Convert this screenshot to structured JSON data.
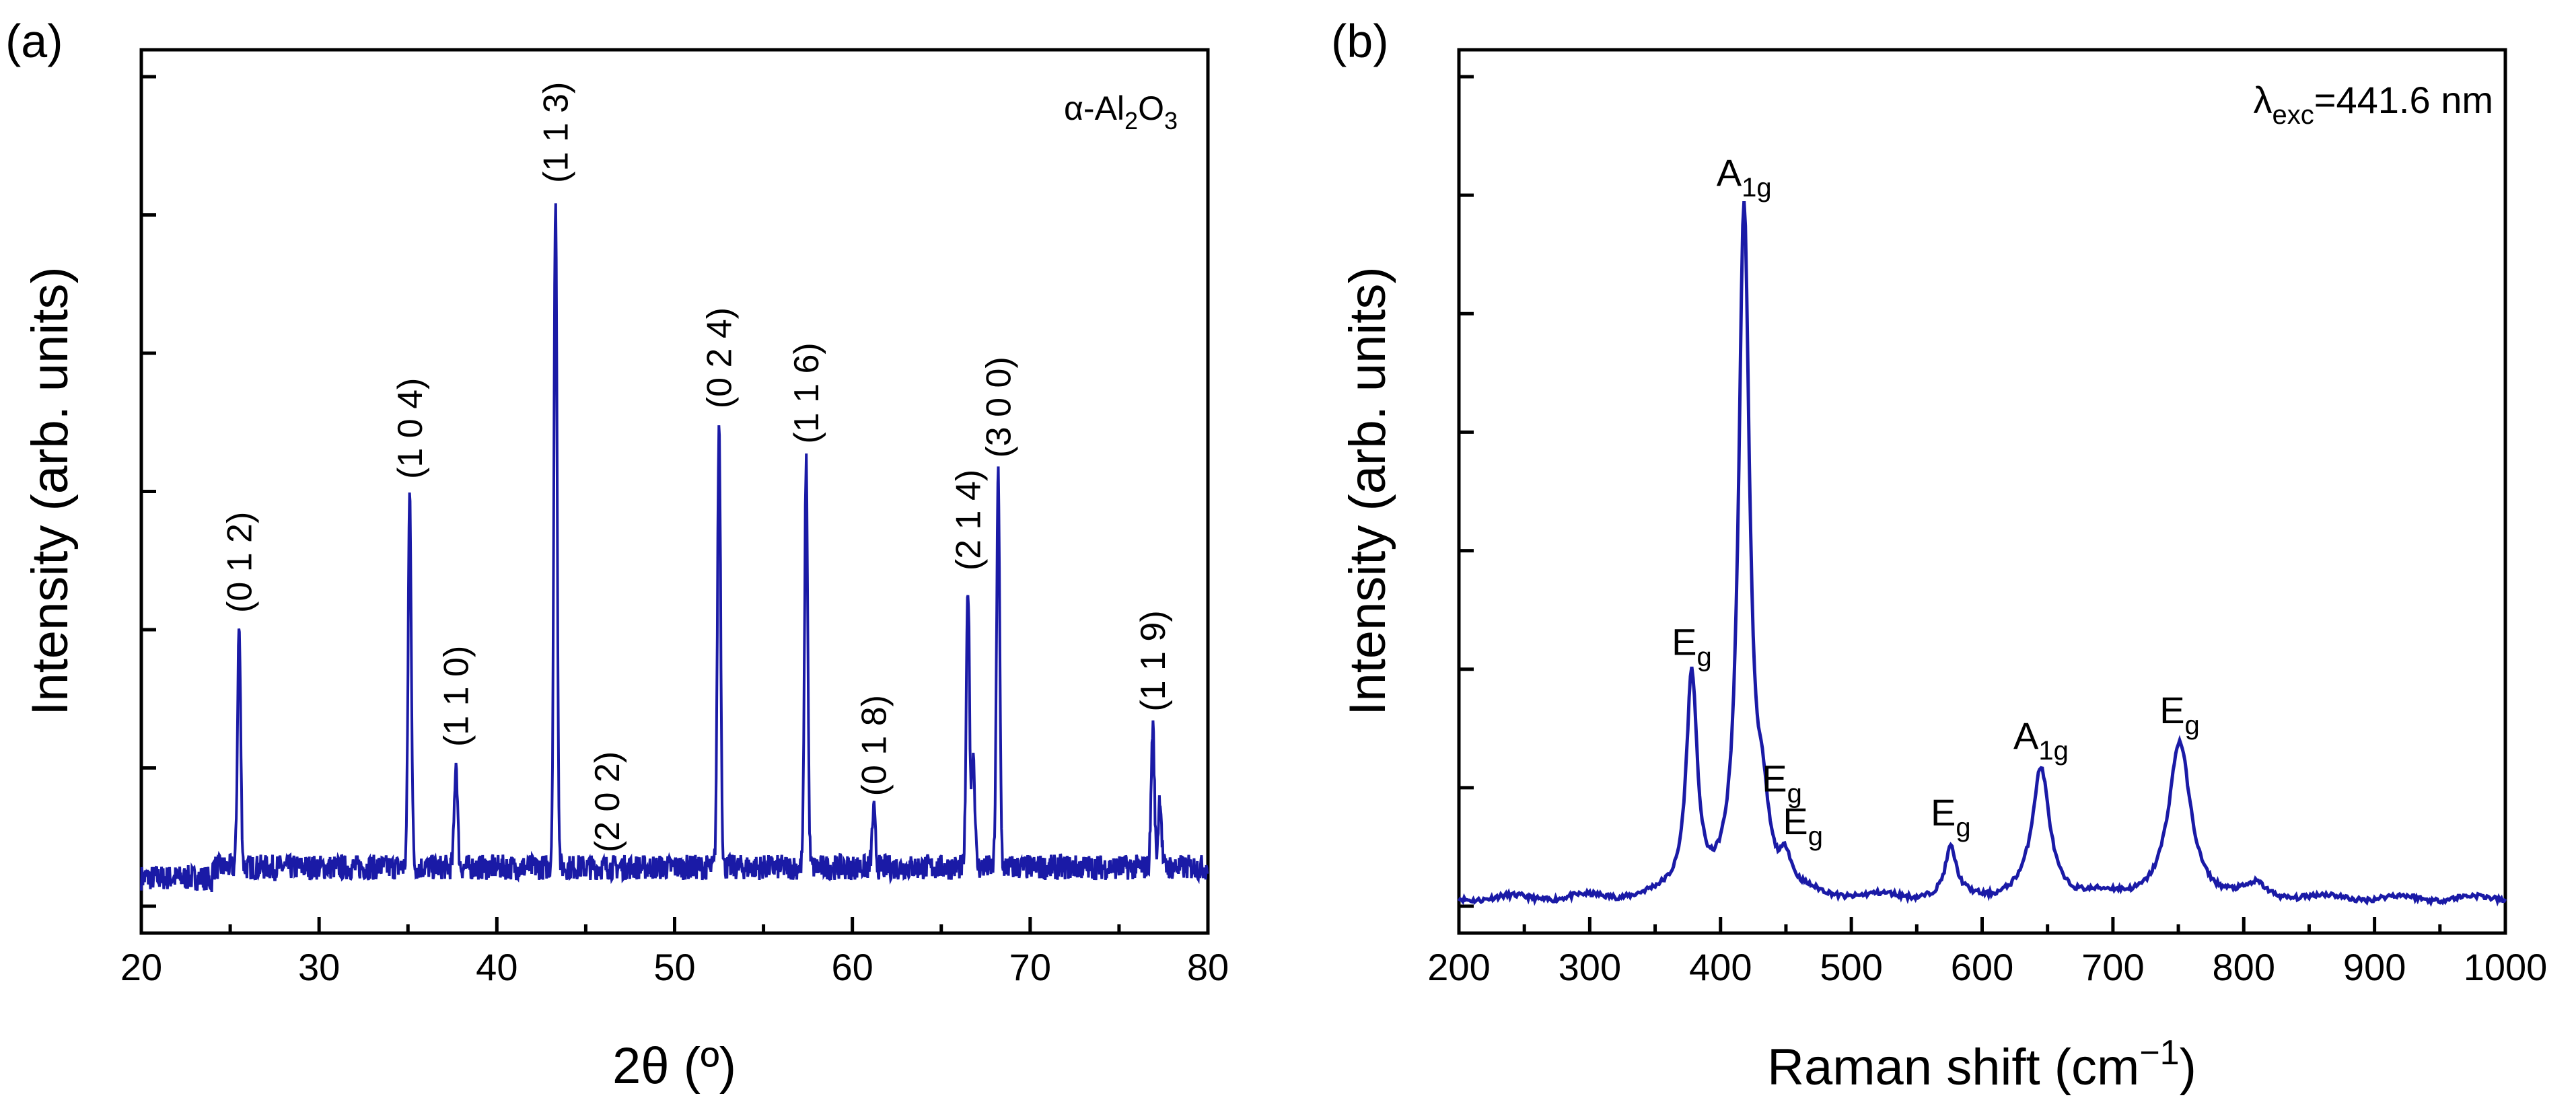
{
  "chart_data": [
    {
      "panel": "(a)",
      "type": "line",
      "title": "",
      "xlabel": "2θ (º)",
      "ylabel": "Intensity (arb. units)",
      "annotation": {
        "main": "α-Al",
        "sub1": "2",
        "mid": "O",
        "sub2": "3"
      },
      "xlim": [
        20,
        80
      ],
      "ylim": [
        -0.02,
        1.2
      ],
      "x_ticks": [
        20,
        30,
        40,
        50,
        60,
        70,
        80
      ],
      "x_tick_labels": [
        "20",
        "30",
        "40",
        "50",
        "60",
        "70",
        "80"
      ],
      "y_minor_tick_count": 7,
      "series_color": "#1a1aa6",
      "baseline": 0.04,
      "noise": 0.018,
      "peaks": [
        {
          "x": 23.9,
          "y": 0.035
        },
        {
          "x": 25.5,
          "y": 0.38
        },
        {
          "x": 28.5,
          "y": 0.04
        },
        {
          "x": 35.1,
          "y": 0.57
        },
        {
          "x": 37.7,
          "y": 0.19
        },
        {
          "x": 43.3,
          "y": 0.99
        },
        {
          "x": 52.5,
          "y": 0.67
        },
        {
          "x": 57.4,
          "y": 0.62
        },
        {
          "x": 61.2,
          "y": 0.12
        },
        {
          "x": 66.5,
          "y": 0.44
        },
        {
          "x": 66.8,
          "y": 0.2
        },
        {
          "x": 68.2,
          "y": 0.6
        },
        {
          "x": 76.9,
          "y": 0.24
        },
        {
          "x": 77.3,
          "y": 0.14
        }
      ],
      "peak_labels": [
        {
          "text": "(0 1 2)",
          "x": 25.5,
          "y": 0.38
        },
        {
          "text": "(1 0 4)",
          "x": 35.1,
          "y": 0.57
        },
        {
          "text": "(1 1 0)",
          "x": 37.7,
          "y": 0.19
        },
        {
          "text": "(1 1 3)",
          "x": 43.3,
          "y": 0.99
        },
        {
          "text": "(2 0 2)",
          "x": 46.2,
          "y": 0.04
        },
        {
          "text": "(0 2 4)",
          "x": 52.5,
          "y": 0.67
        },
        {
          "text": "(1 1 6)",
          "x": 57.4,
          "y": 0.62
        },
        {
          "text": "(0 1 8)",
          "x": 61.2,
          "y": 0.12
        },
        {
          "text": "(2 1 4)",
          "x": 66.5,
          "y": 0.44
        },
        {
          "text": "(3 0 0)",
          "x": 68.2,
          "y": 0.6
        },
        {
          "text": "(1 1 9)",
          "x": 76.9,
          "y": 0.24
        }
      ]
    },
    {
      "panel": "(b)",
      "type": "line",
      "title": "",
      "xlabel": "Raman shift (cm",
      "xlabel_sup": "−1",
      "xlabel_end": ")",
      "ylabel": "Intensity (arb. units)",
      "annotation": {
        "main": "λ",
        "sub": "exc",
        "rest": "=441.6 nm"
      },
      "xlim": [
        200,
        1000
      ],
      "ylim": [
        0,
        1.0
      ],
      "x_ticks": [
        200,
        300,
        400,
        500,
        600,
        700,
        800,
        900,
        1000
      ],
      "x_tick_labels": [
        "200",
        "300",
        "400",
        "500",
        "600",
        "700",
        "800",
        "900",
        "1000"
      ],
      "y_minor_tick_count": 8,
      "series_color": "#1a1aa6",
      "baseline": 0.005,
      "peaks": [
        {
          "x": 378,
          "y": 0.26,
          "w": 5
        },
        {
          "x": 418,
          "y": 0.8,
          "w": 5
        },
        {
          "x": 432,
          "y": 0.08,
          "w": 6
        },
        {
          "x": 450,
          "y": 0.035,
          "w": 5
        },
        {
          "x": 576,
          "y": 0.055,
          "w": 5
        },
        {
          "x": 645,
          "y": 0.15,
          "w": 8
        },
        {
          "x": 751,
          "y": 0.18,
          "w": 10
        },
        {
          "x": 810,
          "y": 0.012,
          "w": 8
        }
      ],
      "peak_labels": [
        {
          "base": "A",
          "sub": "1g",
          "x": 418,
          "y": 0.82
        },
        {
          "base": "E",
          "sub": "g",
          "x": 378,
          "y": 0.27
        },
        {
          "base": "E",
          "sub": "g",
          "x": 447,
          "y": 0.11
        },
        {
          "base": "E",
          "sub": "g",
          "x": 463,
          "y": 0.06
        },
        {
          "base": "E",
          "sub": "g",
          "x": 576,
          "y": 0.07
        },
        {
          "base": "A",
          "sub": "1g",
          "x": 645,
          "y": 0.16
        },
        {
          "base": "E",
          "sub": "g",
          "x": 751,
          "y": 0.19
        }
      ]
    }
  ]
}
